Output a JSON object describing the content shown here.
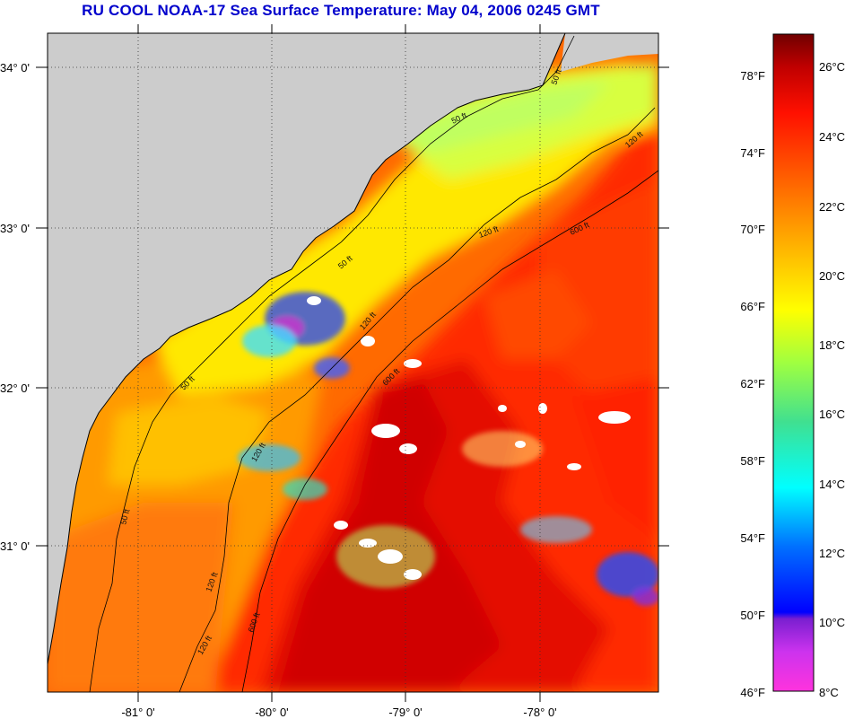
{
  "title": "RU COOL  NOAA-17  Sea Surface Temperature:  May 04, 2006 0245 GMT",
  "colors": {
    "title": "#0000cc",
    "land": "#cccccc",
    "palette": [
      "#ff33cc",
      "#8a2be2",
      "#0000ff",
      "#0080ff",
      "#00ffff",
      "#40e080",
      "#a0ff40",
      "#ffff00",
      "#ffc000",
      "#ff8000",
      "#ff3000",
      "#e00000",
      "#800000"
    ]
  },
  "map": {
    "lat_labels": [
      "34° 0'",
      "33° 0'",
      "32° 0'",
      "31° 0'"
    ],
    "lon_labels": [
      "-81° 0'",
      "-80° 0'",
      "-79° 0'",
      "-78° 0'"
    ],
    "contour_labels": [
      "50 ft",
      "50 ft",
      "50 ft",
      "50 ft",
      "50 ft",
      "120 ft",
      "120 ft",
      "120 ft",
      "120 ft",
      "120 ft",
      "120 ft",
      "600 ft",
      "600 ft",
      "600 ft"
    ]
  },
  "legend": {
    "fahrenheit": [
      "78°F",
      "74°F",
      "70°F",
      "66°F",
      "62°F",
      "58°F",
      "54°F",
      "50°F",
      "46°F"
    ],
    "celsius": [
      "26°C",
      "24°C",
      "22°C",
      "20°C",
      "18°C",
      "16°C",
      "14°C",
      "12°C",
      "10°C",
      "8°C"
    ]
  }
}
